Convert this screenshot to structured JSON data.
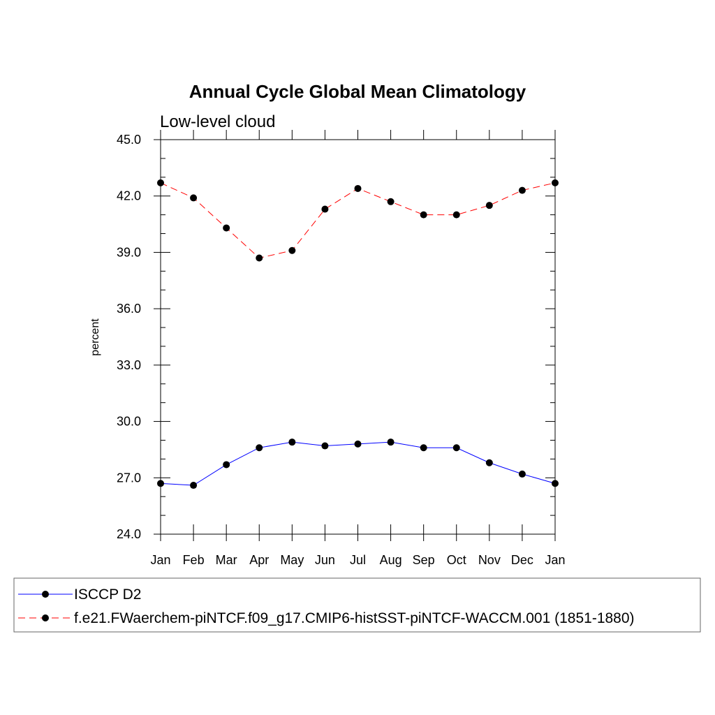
{
  "chart_data": {
    "type": "line",
    "title": "Annual Cycle Global Mean Climatology",
    "subtitle": "Low-level cloud",
    "xlabel": "",
    "ylabel": "percent",
    "categories": [
      "Jan",
      "Feb",
      "Mar",
      "Apr",
      "May",
      "Jun",
      "Jul",
      "Aug",
      "Sep",
      "Oct",
      "Nov",
      "Dec",
      "Jan"
    ],
    "ylim": [
      24.0,
      45.0
    ],
    "yticks": [
      "24.0",
      "27.0",
      "30.0",
      "33.0",
      "36.0",
      "39.0",
      "42.0",
      "45.0"
    ],
    "grid": false,
    "legend_position": "bottom",
    "series": [
      {
        "name": "ISCCP D2",
        "color": "#0000ff",
        "line_style": "solid",
        "marker": "filled-circle",
        "values": [
          26.7,
          26.6,
          27.7,
          28.6,
          28.9,
          28.7,
          28.8,
          28.9,
          28.6,
          28.6,
          27.8,
          27.2,
          26.7
        ]
      },
      {
        "name": "f.e21.FWaerchem-piNTCF.f09_g17.CMIP6-histSST-piNTCF-WACCM.001 (1851-1880)",
        "color": "#ff0000",
        "line_style": "dashed",
        "marker": "filled-circle",
        "values": [
          42.7,
          41.9,
          40.3,
          38.7,
          39.1,
          41.3,
          42.4,
          41.7,
          41.0,
          41.0,
          41.5,
          42.3,
          42.7
        ]
      }
    ]
  }
}
